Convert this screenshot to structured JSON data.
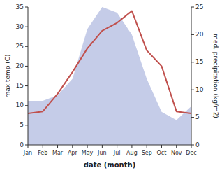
{
  "chart_data": {
    "type": "line",
    "categories": [
      "Jan",
      "Feb",
      "Mar",
      "Apr",
      "May",
      "Jun",
      "Jul",
      "Aug",
      "Sep",
      "Oct",
      "Nov",
      "Dec"
    ],
    "series": [
      {
        "type": "area",
        "axis": "y2",
        "color": "#c5cce8",
        "values": [
          8.0,
          8.0,
          9.0,
          12.0,
          21.0,
          25.0,
          24.0,
          20.0,
          12.0,
          6.0,
          4.5,
          7.0
        ]
      },
      {
        "type": "line",
        "color": "#c0504d",
        "values": [
          8.0,
          8.5,
          13.0,
          18.5,
          24.5,
          29.0,
          31.0,
          34.0,
          24.0,
          20.0,
          8.5,
          8.0
        ]
      }
    ],
    "xlabel": "date (month)",
    "ylabel": "max temp (C)",
    "y2label": "med. precipitation (kg/m2)",
    "ylim": [
      0,
      35
    ],
    "yticks": [
      0,
      5,
      10,
      15,
      20,
      25,
      30,
      35
    ],
    "y2lim": [
      0,
      25
    ],
    "y2ticks": [
      0,
      5,
      10,
      15,
      20,
      25
    ],
    "grid": false
  }
}
